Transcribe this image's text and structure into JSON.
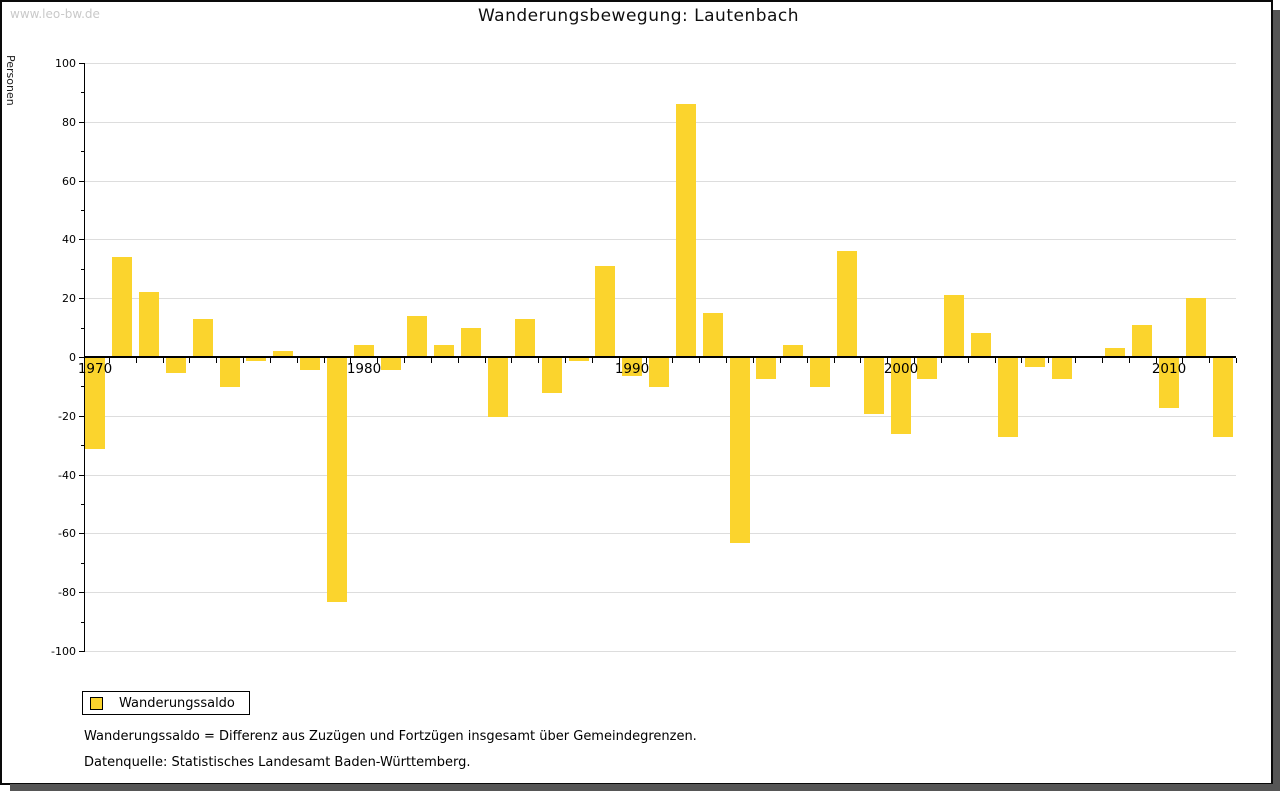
{
  "watermark": "www.leo-bw.de",
  "title": "Wanderungsbewegung: Lautenbach",
  "legend": {
    "label": "Wanderungssaldo"
  },
  "footnotes": {
    "definition": "Wanderungssaldo = Differenz aus Zuzügen und Fortzügen insgesamt über Gemeindegrenzen.",
    "source": "Datenquelle: Statistisches Landesamt Baden-Württemberg."
  },
  "colors": {
    "bar": "#FBD42D",
    "grid": "#DDDDDD",
    "axis": "#000000",
    "watermark": "#C9C9C9",
    "frame_shadow": "#565656"
  },
  "chart_data": {
    "type": "bar",
    "title": "Wanderungsbewegung: Lautenbach",
    "xlabel": "",
    "ylabel": "Personen",
    "ylim": [
      -100,
      100
    ],
    "y_major_ticks": [
      100,
      80,
      60,
      40,
      20,
      0,
      -20,
      -40,
      -60,
      -80,
      -100
    ],
    "y_minor_tick_step": 10,
    "x_decade_labels": [
      1970,
      1980,
      1990,
      2000,
      2010
    ],
    "grid": true,
    "legend_position": "bottom-left",
    "series": [
      {
        "name": "Wanderungssaldo",
        "x": [
          1970,
          1971,
          1972,
          1973,
          1974,
          1975,
          1976,
          1977,
          1978,
          1979,
          1980,
          1981,
          1982,
          1983,
          1984,
          1985,
          1986,
          1987,
          1988,
          1989,
          1990,
          1991,
          1992,
          1993,
          1994,
          1995,
          1996,
          1997,
          1998,
          1999,
          2000,
          2001,
          2002,
          2003,
          2004,
          2005,
          2006,
          2007,
          2008,
          2009,
          2010,
          2011,
          2012
        ],
        "values": [
          -31,
          34,
          22,
          -5,
          13,
          -10,
          -1,
          2,
          -4,
          -83,
          4,
          -4,
          14,
          4,
          10,
          -20,
          13,
          -12,
          -1,
          31,
          -6,
          -10,
          86,
          15,
          -63,
          -7,
          4,
          -10,
          36,
          -19,
          -26,
          -7,
          21,
          8,
          -27,
          -3,
          -7,
          0,
          3,
          11,
          -17,
          20,
          -27
        ]
      }
    ]
  }
}
